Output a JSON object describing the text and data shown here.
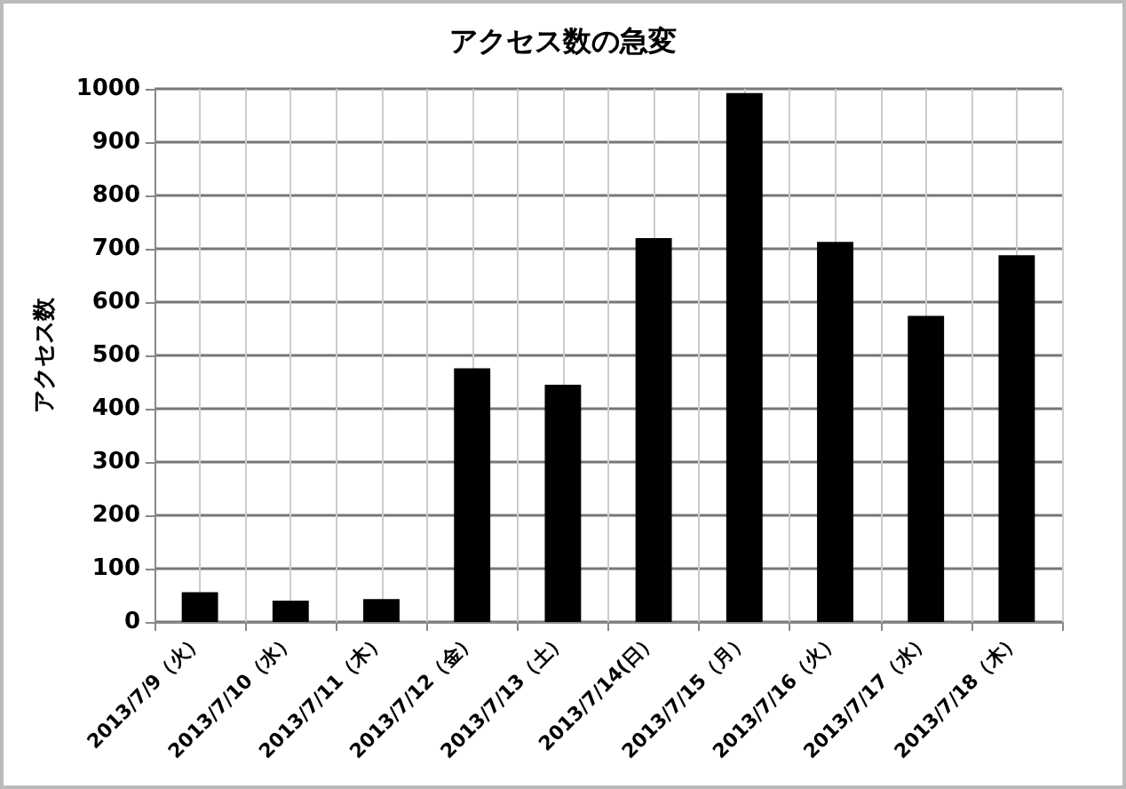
{
  "chart_data": {
    "type": "bar",
    "title": "アクセス数の急変",
    "ylabel": "アクセス数",
    "categories": [
      "2013/7/9（火）",
      "2013/7/10（水）",
      "2013/7/11（木）",
      "2013/7/12（金）",
      "2013/7/13（土）",
      "2013/7/14(日）",
      "2013/7/15（月）",
      "2013/7/16（火）",
      "2013/7/17（水）",
      "2013/7/18（木）"
    ],
    "values": [
      56,
      40,
      43,
      476,
      445,
      720,
      992,
      713,
      574,
      688
    ],
    "color": "#000000",
    "ylim": [
      0,
      1000
    ],
    "yticks": [
      0,
      100,
      200,
      300,
      400,
      500,
      600,
      700,
      800,
      900,
      1000
    ],
    "grid": true
  }
}
